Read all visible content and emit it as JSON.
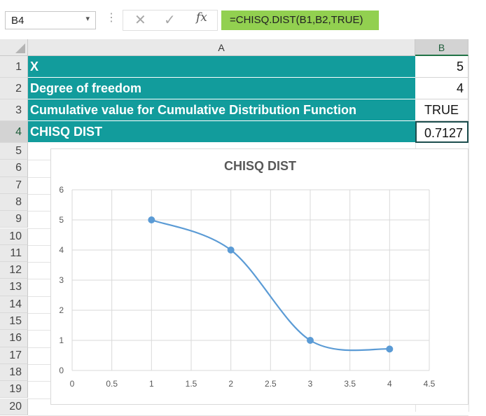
{
  "formula_bar": {
    "name_box": "B4",
    "fx_label": "fx",
    "formula": "=CHISQ.DIST(B1,B2,TRUE)"
  },
  "columns": [
    "A",
    "B"
  ],
  "rows": [
    "1",
    "2",
    "3",
    "4",
    "5",
    "6",
    "7",
    "8",
    "9",
    "10",
    "11",
    "12",
    "13",
    "14",
    "15",
    "16",
    "17",
    "18",
    "19",
    "20"
  ],
  "cells": [
    {
      "label": "X",
      "value": "5"
    },
    {
      "label": "Degree of freedom",
      "value": "4"
    },
    {
      "label": "Cumulative value for Cumulative Distribution Function",
      "value": "TRUE"
    },
    {
      "label": "CHISQ DIST",
      "value": "0.7127"
    }
  ],
  "colors": {
    "teal_fill": "#129c9c",
    "formula_fill": "#92d050",
    "series_line": "#5b9bd5"
  },
  "chart_data": {
    "type": "line",
    "title": "CHISQ DIST",
    "x": [
      1,
      2,
      3,
      4
    ],
    "series": [
      {
        "values": [
          5,
          4,
          1,
          0.7127
        ]
      }
    ],
    "xlim": [
      0,
      4.5
    ],
    "ylim": [
      0,
      6
    ],
    "x_ticks": [
      "0",
      "0.5",
      "1",
      "1.5",
      "2",
      "2.5",
      "3",
      "3.5",
      "4",
      "4.5"
    ],
    "y_ticks": [
      "0",
      "1",
      "2",
      "3",
      "4",
      "5",
      "6"
    ],
    "smoothed": true,
    "grid": true,
    "legend": "none"
  }
}
